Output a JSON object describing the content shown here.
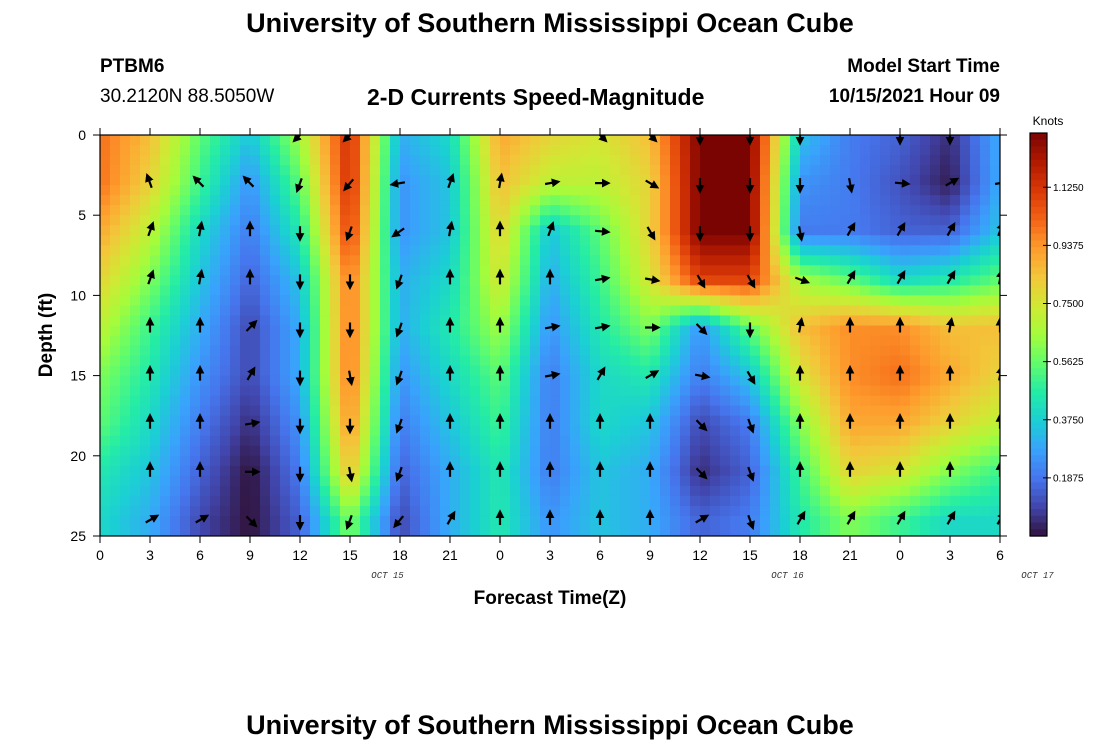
{
  "header": {
    "title": "University of Southern Mississippi Ocean Cube",
    "station": "PTBM6",
    "coords": "30.2120N  88.5050W",
    "subtitle": "2-D Currents Speed-Magnitude",
    "model_label": "Model Start Time",
    "model_time": "10/15/2021 Hour 09"
  },
  "footer": {
    "title": "University of Southern Mississippi Ocean Cube"
  },
  "colors": {
    "ramp": [
      "#30123b",
      "#4145ab",
      "#4675ed",
      "#39a2fc",
      "#1bcfd4",
      "#24eca6",
      "#61fc6c",
      "#a4fc3b",
      "#d1e834",
      "#f3c63a",
      "#fe9b2d",
      "#f36315",
      "#d93806",
      "#b11901",
      "#7a0402"
    ]
  },
  "chart_data": {
    "type": "heatmap",
    "title": "2-D Currents Speed-Magnitude",
    "xlabel": "Forecast Time(Z)",
    "ylabel": "Depth (ft)",
    "x_ticks": [
      "0",
      "3",
      "6",
      "9",
      "12",
      "15",
      "18",
      "21",
      "0",
      "3",
      "6",
      "9",
      "12",
      "15",
      "18",
      "21",
      "0",
      "3",
      "6"
    ],
    "date_labels": [
      {
        "text": "OCT 15",
        "at_tick": 5.75
      },
      {
        "text": "OCT 16",
        "at_tick": 13.75
      },
      {
        "text": "OCT 17",
        "at_tick": 18.75
      }
    ],
    "xlim_hours": [
      0,
      54
    ],
    "y_ticks": [
      "0",
      "5",
      "10",
      "15",
      "20",
      "25"
    ],
    "ylim": [
      0,
      25
    ],
    "colorbar": {
      "label": "Knots",
      "ticks": [
        "0.1875",
        "0.3750",
        "0.5625",
        "0.7500",
        "0.9375",
        "1.1250"
      ],
      "tick_values": [
        0.1875,
        0.375,
        0.5625,
        0.75,
        0.9375,
        1.125
      ],
      "range": [
        0,
        1.3
      ]
    },
    "depths_ft": [
      0,
      3,
      6,
      9,
      12,
      15,
      18,
      21,
      24
    ],
    "hours": [
      0,
      3,
      6,
      9,
      12,
      15,
      18,
      21,
      24,
      27,
      30,
      33,
      36,
      39,
      42,
      45,
      48,
      51,
      54
    ],
    "speed_knots": [
      [
        1.0,
        0.85,
        0.55,
        0.35,
        0.65,
        1.15,
        0.3,
        0.4,
        0.9,
        0.8,
        0.75,
        0.85,
        1.3,
        1.3,
        0.35,
        0.2,
        0.15,
        0.05,
        0.3
      ],
      [
        1.0,
        0.8,
        0.5,
        0.25,
        0.55,
        1.15,
        0.25,
        0.35,
        0.85,
        0.7,
        0.7,
        0.8,
        1.3,
        1.3,
        0.25,
        0.2,
        0.12,
        0.02,
        0.3
      ],
      [
        0.9,
        0.7,
        0.4,
        0.2,
        0.45,
        1.1,
        0.25,
        0.35,
        0.8,
        0.35,
        0.55,
        0.8,
        1.3,
        1.3,
        0.2,
        0.2,
        0.15,
        0.15,
        0.35
      ],
      [
        0.8,
        0.6,
        0.35,
        0.15,
        0.35,
        1.0,
        0.3,
        0.4,
        0.75,
        0.3,
        0.5,
        0.75,
        1.1,
        1.1,
        0.65,
        0.55,
        0.4,
        0.45,
        0.55
      ],
      [
        0.7,
        0.5,
        0.3,
        0.1,
        0.3,
        1.0,
        0.3,
        0.45,
        0.65,
        0.25,
        0.45,
        0.6,
        0.25,
        0.55,
        0.85,
        0.95,
        0.95,
        0.85,
        0.85
      ],
      [
        0.6,
        0.45,
        0.25,
        0.1,
        0.3,
        1.0,
        0.25,
        0.4,
        0.55,
        0.2,
        0.4,
        0.45,
        0.2,
        0.35,
        0.75,
        0.95,
        1.0,
        0.9,
        0.8
      ],
      [
        0.55,
        0.4,
        0.2,
        0.05,
        0.25,
        0.95,
        0.2,
        0.35,
        0.5,
        0.2,
        0.4,
        0.35,
        0.1,
        0.2,
        0.6,
        0.9,
        0.9,
        0.8,
        0.7
      ],
      [
        0.45,
        0.35,
        0.15,
        0.0,
        0.2,
        0.85,
        0.15,
        0.3,
        0.45,
        0.2,
        0.35,
        0.3,
        0.05,
        0.15,
        0.5,
        0.8,
        0.75,
        0.6,
        0.5
      ],
      [
        0.4,
        0.3,
        0.1,
        0.0,
        0.15,
        0.6,
        0.1,
        0.3,
        0.45,
        0.25,
        0.35,
        0.3,
        0.15,
        0.2,
        0.45,
        0.6,
        0.5,
        0.4,
        0.4
      ]
    ],
    "arrow_depths_ft": [
      0,
      3,
      6,
      9,
      12,
      15,
      18,
      21,
      24
    ],
    "arrow_hours": [
      0,
      3,
      6,
      9,
      12,
      15,
      18,
      21,
      24,
      27,
      30,
      33,
      36,
      39,
      42,
      45,
      48,
      51,
      54
    ],
    "arrow_dir_deg": [
      [
        null,
        null,
        null,
        null,
        225,
        225,
        null,
        null,
        null,
        null,
        135,
        135,
        180,
        180,
        180,
        null,
        180,
        180,
        null
      ],
      [
        null,
        340,
        315,
        315,
        200,
        220,
        260,
        20,
        10,
        80,
        90,
        120,
        180,
        180,
        180,
        170,
        95,
        60,
        80
      ],
      [
        null,
        20,
        10,
        0,
        180,
        200,
        235,
        10,
        0,
        20,
        95,
        150,
        180,
        180,
        170,
        30,
        30,
        30,
        20
      ],
      [
        null,
        20,
        10,
        0,
        180,
        180,
        200,
        0,
        0,
        0,
        80,
        100,
        150,
        150,
        110,
        30,
        30,
        30,
        10
      ],
      [
        null,
        0,
        0,
        45,
        180,
        180,
        200,
        0,
        0,
        80,
        80,
        90,
        135,
        180,
        10,
        0,
        0,
        10,
        0
      ],
      [
        null,
        0,
        0,
        30,
        180,
        170,
        200,
        0,
        0,
        80,
        30,
        60,
        100,
        150,
        0,
        0,
        0,
        0,
        10
      ],
      [
        null,
        0,
        0,
        80,
        180,
        180,
        200,
        0,
        0,
        0,
        0,
        0,
        135,
        160,
        0,
        0,
        0,
        0,
        0
      ],
      [
        null,
        0,
        0,
        90,
        180,
        170,
        200,
        0,
        0,
        0,
        0,
        0,
        135,
        160,
        0,
        0,
        0,
        0,
        0
      ],
      [
        null,
        60,
        60,
        135,
        180,
        200,
        220,
        30,
        0,
        0,
        0,
        0,
        60,
        160,
        30,
        30,
        30,
        30,
        30
      ]
    ]
  }
}
